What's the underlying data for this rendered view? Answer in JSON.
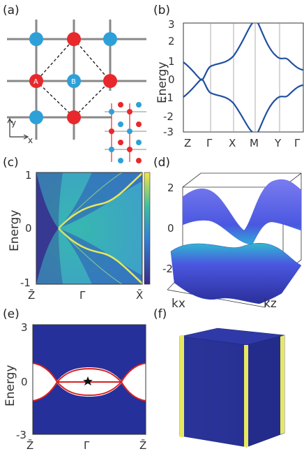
{
  "panels": {
    "a": {
      "label": "(a)",
      "site_a": "A",
      "site_b": "B",
      "axis_x": "x",
      "axis_y": "y"
    },
    "b": {
      "label": "(b)"
    },
    "c": {
      "label": "(c)"
    },
    "d": {
      "label": "(d)"
    },
    "e": {
      "label": "(e)"
    },
    "f": {
      "label": "(f)"
    }
  },
  "colors": {
    "red": "#e8282a",
    "blue": "#2ea0d8",
    "band": "#1f4fa0",
    "bulk_navy": "#25309a",
    "edge_red": "#d81f1f",
    "hinge_yellow": "#e8e860"
  },
  "chart_data": [
    {
      "panel": "b",
      "type": "line",
      "ylabel": "Energy",
      "xticks": [
        "Z",
        "Γ",
        "X",
        "M",
        "Y",
        "Γ"
      ],
      "ylim": [
        -3,
        3
      ],
      "yticks": [
        "3",
        "2",
        "1",
        "0",
        "-1",
        "-2",
        "-3"
      ]
    },
    {
      "panel": "c",
      "type": "heatmap",
      "ylabel": "Energy",
      "xticks": [
        "Z̄",
        "Γ̄",
        "X̄"
      ],
      "ylim": [
        -1,
        1
      ],
      "yticks": [
        "1",
        "0",
        "-1"
      ]
    },
    {
      "panel": "d",
      "type": "surface",
      "zticks": [
        "2",
        "0",
        "-2"
      ],
      "xlabel": "kx",
      "ylabel": "kz"
    },
    {
      "panel": "e",
      "type": "line",
      "ylabel": "Energy",
      "xticks": [
        "Z̄",
        "Γ̄",
        "Z̄"
      ],
      "ylim": [
        -3,
        3
      ],
      "yticks": [
        "3",
        "0",
        "-3"
      ]
    }
  ]
}
